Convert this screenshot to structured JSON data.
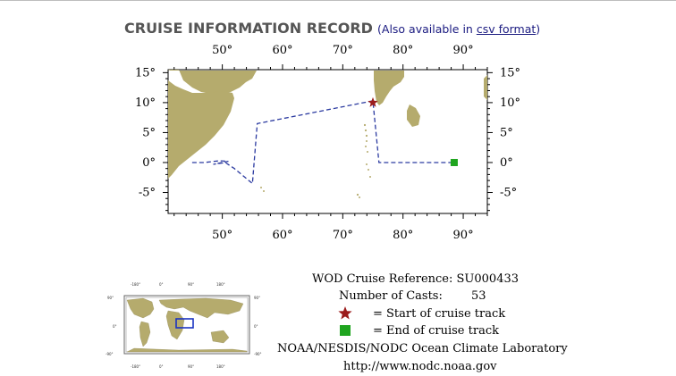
{
  "header": {
    "title": "CRUISE INFORMATION RECORD",
    "avail_prefix": "(Also available in ",
    "avail_link": "csv format",
    "avail_suffix": ")"
  },
  "map": {
    "lon_ticks": [
      50,
      60,
      70,
      80,
      90
    ],
    "lat_ticks": [
      15,
      10,
      5,
      0,
      -5
    ],
    "lon_labels": [
      "50°",
      "60°",
      "70°",
      "80°",
      "90°"
    ],
    "lat_labels": [
      "15°",
      "10°",
      "5°",
      "0°",
      "-5°"
    ],
    "lon_range": [
      41,
      94
    ],
    "lat_range": [
      -8.5,
      15.5
    ],
    "land_color": "#b5ab6d",
    "track_color": "#2b3aa0",
    "start_marker_color": "#9b1c1c",
    "end_marker_color": "#1fa51f",
    "track": [
      [
        45.0,
        0.0
      ],
      [
        47.0,
        0.0
      ],
      [
        49.5,
        0.3
      ],
      [
        51.0,
        0.2
      ],
      [
        48.5,
        -0.3
      ],
      [
        50.5,
        0.0
      ],
      [
        52.0,
        -1.0
      ],
      [
        55.0,
        -3.5
      ],
      [
        55.8,
        6.5
      ],
      [
        75.0,
        10.3
      ],
      [
        76.0,
        0.0
      ],
      [
        88.5,
        0.0
      ]
    ],
    "start": [
      75.0,
      10.0
    ],
    "end": [
      88.5,
      0.0
    ]
  },
  "legend": {
    "reference_label": "WOD Cruise Reference:",
    "reference_value": "SU000433",
    "casts_label": "Number of Casts:",
    "casts_value": "53",
    "start_label": "= Start of cruise track",
    "end_label": "= End of cruise track",
    "org": "NOAA/NESDIS/NODC Ocean Climate Laboratory",
    "url": "http://www.nodc.noaa.gov"
  }
}
